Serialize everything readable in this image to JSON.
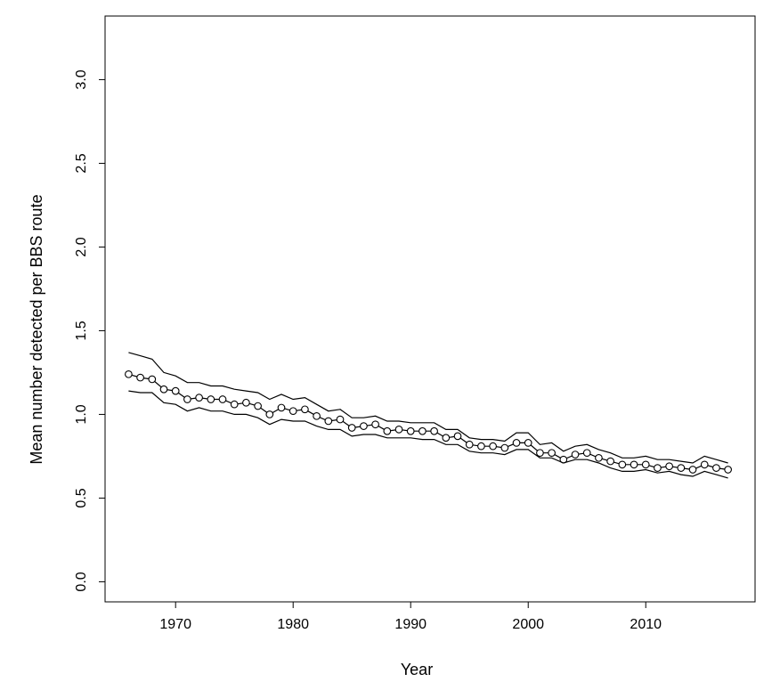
{
  "chart_data": {
    "type": "line",
    "title": "",
    "xlabel": "Year",
    "ylabel": "Mean number detected per BBS route",
    "xlim": [
      1964,
      2019.3
    ],
    "ylim": [
      -0.12,
      3.38
    ],
    "xticks": [
      1970,
      1980,
      1990,
      2000,
      2010
    ],
    "xtick_labels": [
      "1970",
      "1980",
      "1990",
      "2000",
      "2010"
    ],
    "yticks": [
      0.0,
      0.5,
      1.0,
      1.5,
      2.0,
      2.5,
      3.0
    ],
    "ytick_labels": [
      "0.0",
      "0.5",
      "1.0",
      "1.5",
      "2.0",
      "2.5",
      "3.0"
    ],
    "grid": false,
    "legend": "none",
    "x": [
      1966,
      1967,
      1968,
      1969,
      1970,
      1971,
      1972,
      1973,
      1974,
      1975,
      1976,
      1977,
      1978,
      1979,
      1980,
      1981,
      1982,
      1983,
      1984,
      1985,
      1986,
      1987,
      1988,
      1989,
      1990,
      1991,
      1992,
      1993,
      1994,
      1995,
      1996,
      1997,
      1998,
      1999,
      2000,
      2001,
      2002,
      2003,
      2004,
      2005,
      2006,
      2007,
      2008,
      2009,
      2010,
      2011,
      2012,
      2013,
      2014,
      2015,
      2016,
      2017
    ],
    "series": [
      {
        "role": "upper",
        "style": "line",
        "values": [
          1.37,
          1.35,
          1.33,
          1.25,
          1.23,
          1.19,
          1.19,
          1.17,
          1.17,
          1.15,
          1.14,
          1.13,
          1.09,
          1.12,
          1.09,
          1.1,
          1.06,
          1.02,
          1.03,
          0.98,
          0.98,
          0.99,
          0.96,
          0.96,
          0.95,
          0.95,
          0.95,
          0.91,
          0.91,
          0.86,
          0.85,
          0.85,
          0.84,
          0.89,
          0.89,
          0.82,
          0.83,
          0.78,
          0.81,
          0.82,
          0.79,
          0.77,
          0.74,
          0.74,
          0.75,
          0.73,
          0.73,
          0.72,
          0.71,
          0.75,
          0.73,
          0.71
        ]
      },
      {
        "role": "estimate",
        "style": "line-points",
        "values": [
          1.24,
          1.22,
          1.21,
          1.15,
          1.14,
          1.09,
          1.1,
          1.09,
          1.09,
          1.06,
          1.07,
          1.05,
          1.0,
          1.04,
          1.02,
          1.03,
          0.99,
          0.96,
          0.97,
          0.92,
          0.93,
          0.94,
          0.9,
          0.91,
          0.9,
          0.9,
          0.9,
          0.86,
          0.87,
          0.82,
          0.81,
          0.81,
          0.8,
          0.83,
          0.83,
          0.77,
          0.77,
          0.73,
          0.76,
          0.77,
          0.74,
          0.72,
          0.7,
          0.7,
          0.7,
          0.68,
          0.69,
          0.68,
          0.67,
          0.7,
          0.68,
          0.67
        ]
      },
      {
        "role": "lower",
        "style": "line",
        "values": [
          1.14,
          1.13,
          1.13,
          1.07,
          1.06,
          1.02,
          1.04,
          1.02,
          1.02,
          1.0,
          1.0,
          0.98,
          0.94,
          0.97,
          0.96,
          0.96,
          0.93,
          0.91,
          0.91,
          0.87,
          0.88,
          0.88,
          0.86,
          0.86,
          0.86,
          0.85,
          0.85,
          0.82,
          0.82,
          0.78,
          0.77,
          0.77,
          0.76,
          0.79,
          0.79,
          0.74,
          0.74,
          0.71,
          0.73,
          0.73,
          0.71,
          0.68,
          0.66,
          0.66,
          0.67,
          0.65,
          0.66,
          0.64,
          0.63,
          0.66,
          0.64,
          0.62
        ]
      }
    ],
    "colors": {
      "line": "#000000",
      "point": "#000000",
      "background": "#ffffff"
    }
  }
}
